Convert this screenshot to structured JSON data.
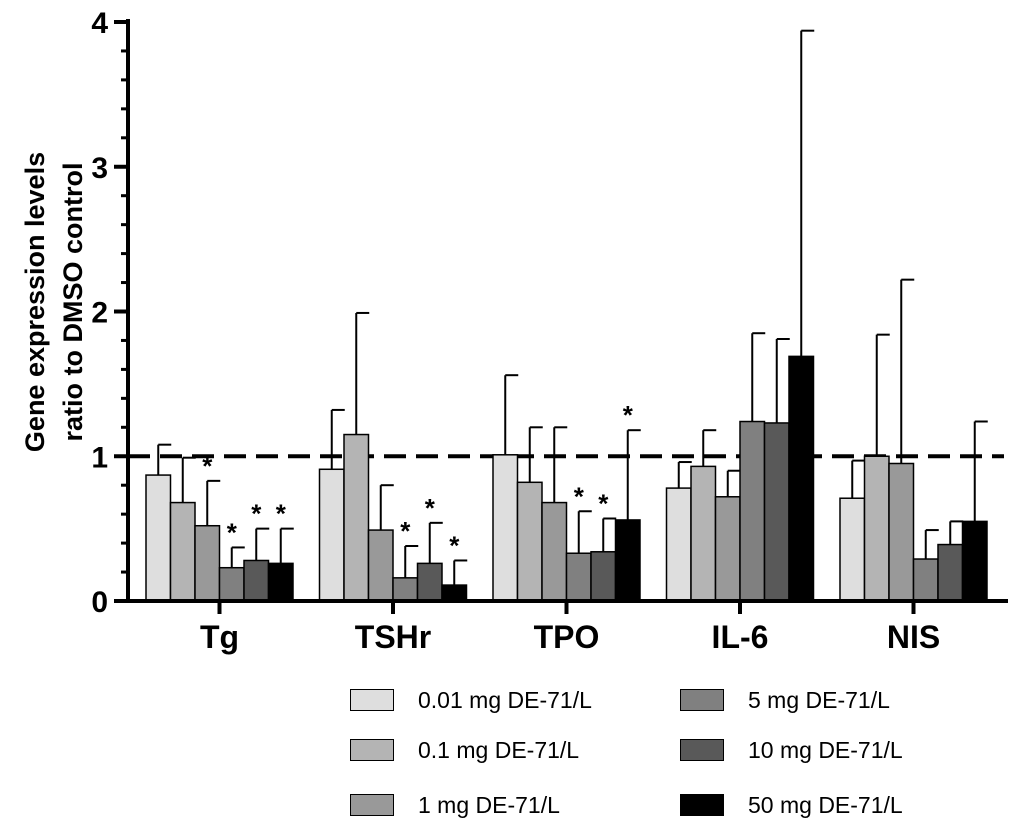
{
  "chart_data": {
    "type": "bar",
    "ylabel_line1": "Gene expression levels",
    "ylabel_line2": "ratio to DMSO control",
    "ylim": [
      0,
      4
    ],
    "yticks": [
      "0",
      "1",
      "2",
      "3",
      "4"
    ],
    "reference_line": 1,
    "categories": [
      "Tg",
      "TSHr",
      "TPO",
      "IL-6",
      "NIS"
    ],
    "series": [
      {
        "name": "0.01 mg DE-71/L",
        "color": "#dedede",
        "values": [
          0.87,
          0.91,
          1.01,
          0.78,
          0.71
        ],
        "errors": [
          0.21,
          0.41,
          0.55,
          0.18,
          0.26
        ],
        "significant": [
          false,
          false,
          false,
          false,
          false
        ]
      },
      {
        "name": "0.1 mg DE-71/L",
        "color": "#b4b4b4",
        "values": [
          0.68,
          1.15,
          0.82,
          0.93,
          1.0
        ],
        "errors": [
          0.31,
          0.84,
          0.38,
          0.25,
          0.84
        ],
        "significant": [
          false,
          false,
          false,
          false,
          false
        ]
      },
      {
        "name": "1 mg DE-71/L",
        "color": "#999999",
        "values": [
          0.52,
          0.49,
          0.68,
          0.72,
          0.95
        ],
        "errors": [
          0.31,
          0.31,
          0.52,
          0.18,
          1.27
        ],
        "significant": [
          true,
          false,
          false,
          false,
          false
        ]
      },
      {
        "name": "5 mg DE-71/L",
        "color": "#808080",
        "values": [
          0.23,
          0.16,
          0.33,
          1.24,
          0.29
        ],
        "errors": [
          0.14,
          0.22,
          0.29,
          0.61,
          0.2
        ],
        "significant": [
          true,
          true,
          true,
          false,
          false
        ]
      },
      {
        "name": "10 mg DE-71/L",
        "color": "#595959",
        "values": [
          0.28,
          0.26,
          0.34,
          1.23,
          0.39
        ],
        "errors": [
          0.22,
          0.28,
          0.23,
          0.58,
          0.16
        ],
        "significant": [
          true,
          true,
          true,
          false,
          false
        ]
      },
      {
        "name": "50 mg DE-71/L",
        "color": "#000000",
        "values": [
          0.26,
          0.11,
          0.56,
          1.69,
          0.55
        ],
        "errors": [
          0.24,
          0.17,
          0.62,
          2.25,
          0.69
        ],
        "significant": [
          true,
          true,
          true,
          false,
          false
        ]
      }
    ],
    "significance_marker": "*",
    "legend_position": "bottom"
  }
}
